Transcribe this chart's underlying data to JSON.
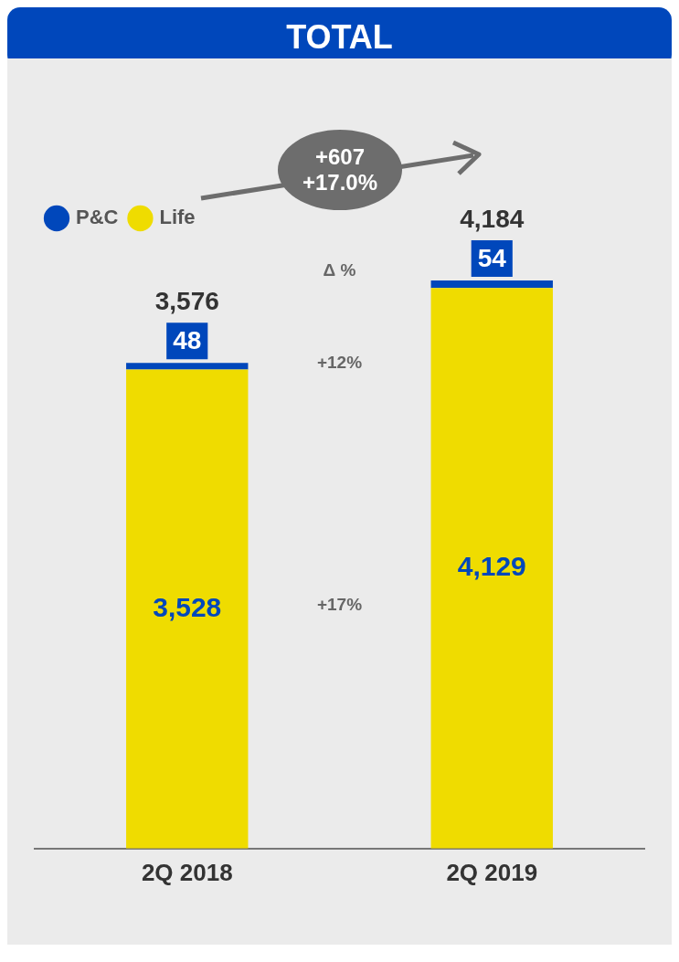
{
  "chart_data": {
    "type": "bar",
    "title": "TOTAL",
    "categories": [
      "2Q 2018",
      "2Q 2019"
    ],
    "stacked": true,
    "legend": "top left",
    "grid": false,
    "series": [
      {
        "name": "Life",
        "color": "#efdc00",
        "values": [
          3528,
          4129
        ],
        "value_labels": [
          "3,528",
          "4,129"
        ]
      },
      {
        "name": "P&C",
        "color": "#0047bb",
        "values": [
          48,
          54
        ],
        "value_labels": [
          "48",
          "54"
        ]
      }
    ],
    "totals": [
      "3,576",
      "4,184"
    ],
    "annotations": [
      "+607",
      "+17.0%",
      "Δ %",
      "+12%",
      "+17%"
    ]
  }
}
